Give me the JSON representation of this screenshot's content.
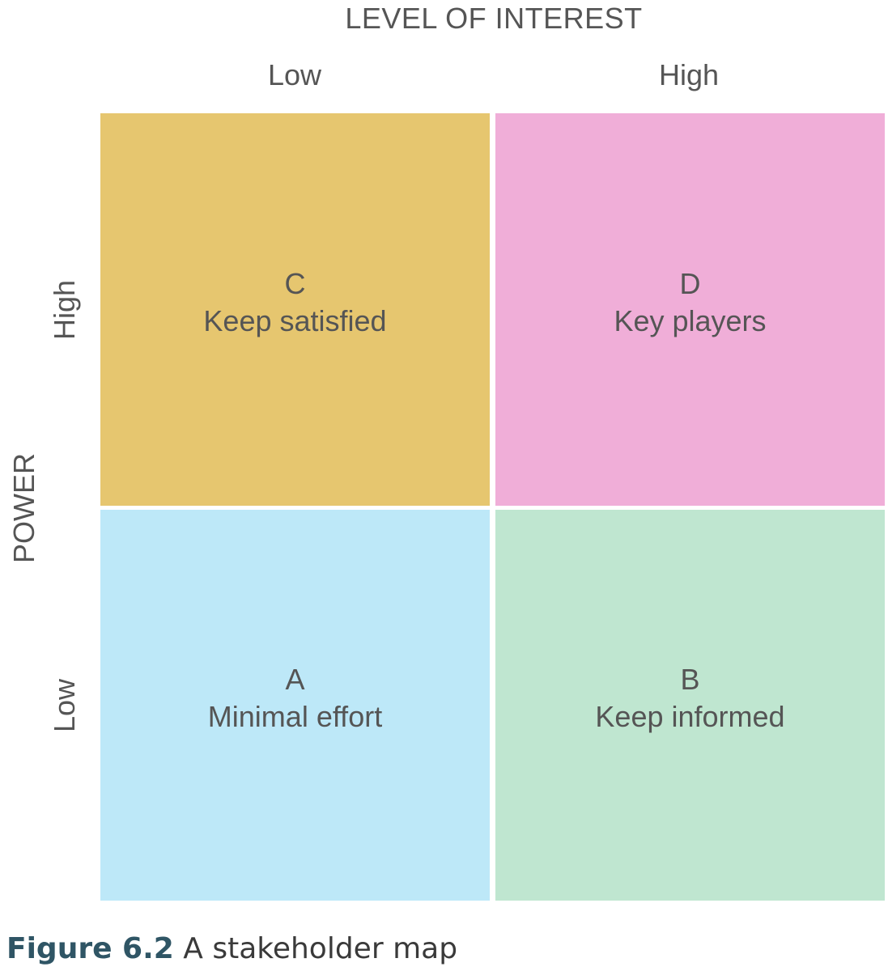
{
  "axis_x": {
    "title": "LEVEL OF INTEREST",
    "low_label": "Low",
    "high_label": "High"
  },
  "axis_y": {
    "title": "POWER",
    "high_label": "High",
    "low_label": "Low"
  },
  "quadrants": {
    "c": {
      "letter": "C",
      "text": "Keep satisfied",
      "color": "#E6C66F"
    },
    "d": {
      "letter": "D",
      "text": "Key players",
      "color": "#F0AED8"
    },
    "a": {
      "letter": "A",
      "text": "Minimal effort",
      "color": "#BDE8F8"
    },
    "b": {
      "letter": "B",
      "text": "Keep informed",
      "color": "#BFE6D0"
    }
  },
  "caption": {
    "figure_number": "Figure 6.2",
    "text": "A stakeholder map"
  }
}
